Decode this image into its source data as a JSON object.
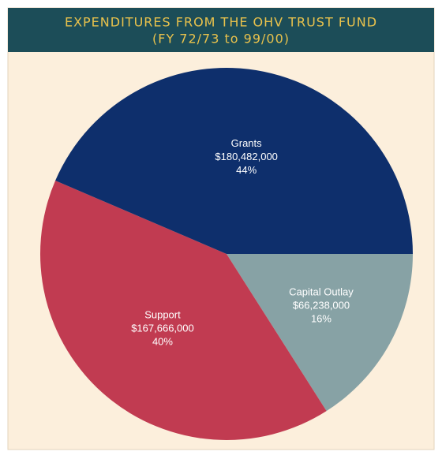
{
  "chart_data": {
    "type": "pie",
    "title": "EXPENDITURES FROM THE OHV TRUST FUND",
    "subtitle": "(FY 72/73 to 99/00)",
    "categories": [
      "Capital Outlay",
      "Support",
      "Grants"
    ],
    "values": [
      66238000,
      167666000,
      180482000
    ],
    "value_labels": [
      "$66,238,000",
      "$167,666,000",
      "$180,482,000"
    ],
    "percents": [
      16,
      40,
      44
    ],
    "percent_labels": [
      "16%",
      "40%",
      "44%"
    ],
    "colors": [
      "#87a2a5",
      "#c13b51",
      "#0e2f6c"
    ]
  }
}
